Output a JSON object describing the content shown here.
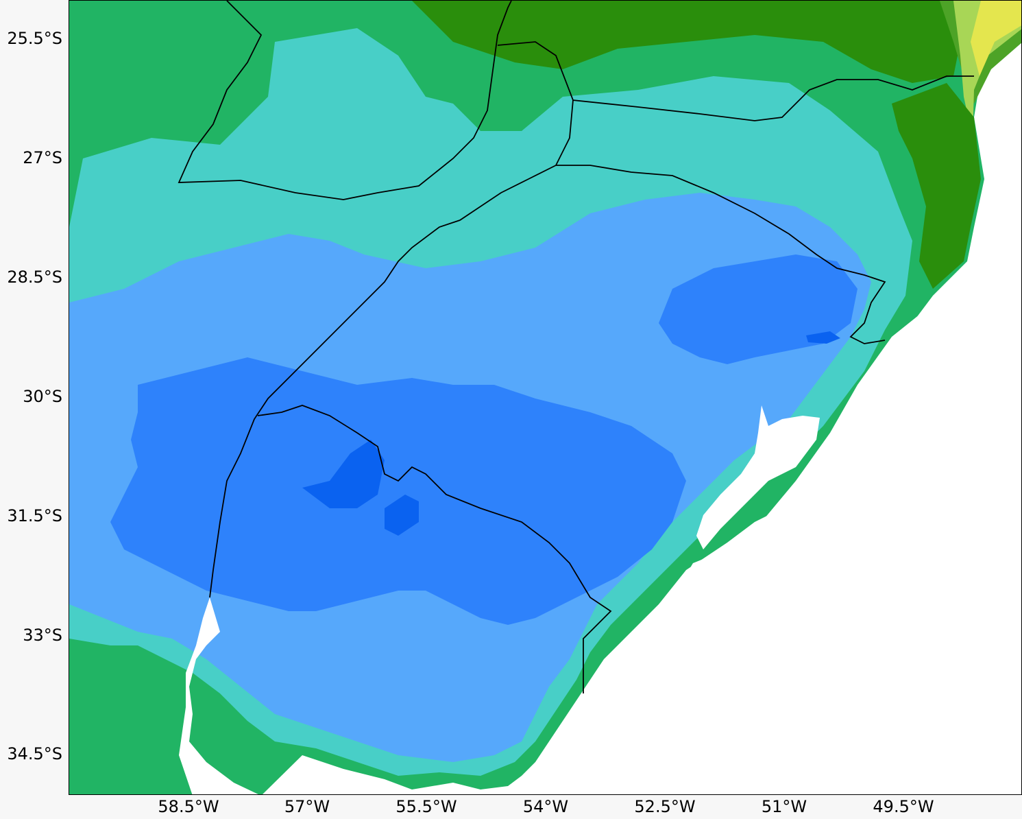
{
  "map": {
    "colors": {
      "ocean": "#ffffff",
      "deep_blue": "#0a62f0",
      "blue": "#2e82fb",
      "light_blue": "#56a8fb",
      "cyan": "#48cfc7",
      "green": "#21b464",
      "dark_green": "#2a8e0c",
      "mid_green": "#4da327",
      "light_green": "#a8d656",
      "yellow": "#e4e64e",
      "border": "#000000"
    },
    "lat_ticks": [
      "25.5°S",
      "27°S",
      "28.5°S",
      "30°S",
      "31.5°S",
      "33°S",
      "34.5°S"
    ],
    "lon_ticks": [
      "58.5°W",
      "57°W",
      "55.5°W",
      "54°W",
      "52.5°W",
      "51°W",
      "49.5°W"
    ]
  }
}
